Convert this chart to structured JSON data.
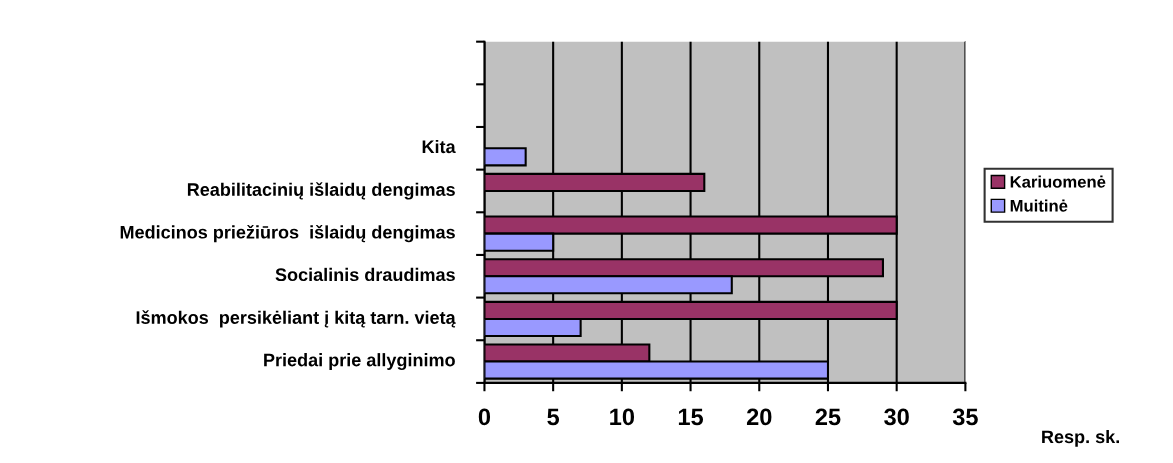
{
  "chart_data": {
    "type": "bar",
    "orientation": "horizontal",
    "categories": [
      null,
      null,
      "Kita",
      "Reabilitacinių išlaidų dengimas",
      "Medicinos priežiūros  išlaidų dengimas",
      "Socialinis draudimas",
      "Išmokos  persikėliant į kitą tarn. vietą",
      "Priedai prie allyginimo"
    ],
    "series": [
      {
        "name": "Kariuomenė",
        "color": "#993366",
        "values": [
          null,
          null,
          null,
          16,
          30,
          29,
          30,
          12
        ]
      },
      {
        "name": "Muitinė",
        "color": "#9999ff",
        "values": [
          null,
          null,
          3,
          null,
          5,
          18,
          7,
          25
        ]
      }
    ],
    "xlim": [
      0,
      35
    ],
    "xticks": [
      0,
      5,
      10,
      15,
      20,
      25,
      30,
      35
    ],
    "xlabel": "Resp. sk.",
    "grid": "x",
    "legend": "right"
  }
}
